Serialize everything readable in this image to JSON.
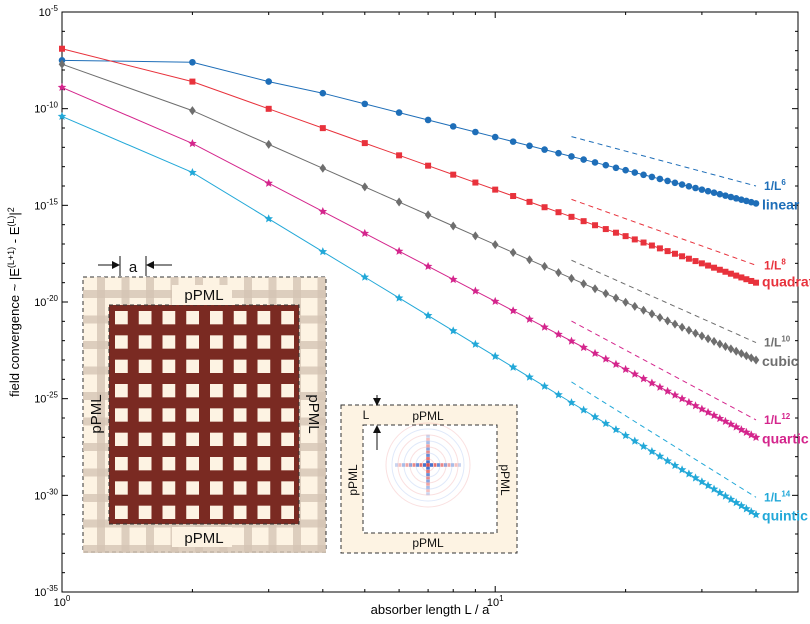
{
  "chart_data": {
    "type": "line",
    "xscale": "log",
    "yscale": "log",
    "xlim": [
      1,
      50
    ],
    "ylim": [
      1e-35,
      1e-05
    ],
    "xlabel": "absorber length L / a",
    "ylabel_parts": [
      "field convergence ~ |E",
      "(L+1)",
      " - E",
      "(L)",
      "|",
      "2"
    ],
    "x_ticks": [
      {
        "value": 1,
        "base": "10",
        "exp": "0"
      },
      {
        "value": 10,
        "base": "10",
        "exp": "1"
      }
    ],
    "y_ticks": [
      {
        "value": -5,
        "base": "10",
        "exp": "-5"
      },
      {
        "value": -10,
        "base": "10",
        "exp": "-10"
      },
      {
        "value": -15,
        "base": "10",
        "exp": "-15"
      },
      {
        "value": -20,
        "base": "10",
        "exp": "-20"
      },
      {
        "value": -25,
        "base": "10",
        "exp": "-25"
      },
      {
        "value": -30,
        "base": "10",
        "exp": "-30"
      },
      {
        "value": -35,
        "base": "10",
        "exp": "-35"
      }
    ],
    "series": [
      {
        "name": "linear",
        "color": "#1e6eb8",
        "marker": "circle",
        "points": [
          [
            1,
            -7.5
          ],
          [
            2,
            -7.6
          ],
          [
            3,
            -8.6
          ],
          [
            4,
            -9.2
          ],
          [
            40,
            -14.9
          ]
        ],
        "ref_label_base": "1/L",
        "ref_label_exp": "6",
        "ref_slope": -6
      },
      {
        "name": "quadratic",
        "color": "#e8323c",
        "marker": "square",
        "points": [
          [
            1,
            -6.9
          ],
          [
            2,
            -8.6
          ],
          [
            40,
            -19.0
          ]
        ],
        "ref_label_base": "1/L",
        "ref_label_exp": "8",
        "ref_slope": -8
      },
      {
        "name": "cubic",
        "color": "#6e6e6e",
        "marker": "diamond",
        "points": [
          [
            1,
            -7.7
          ],
          [
            2,
            -10.1
          ],
          [
            40,
            -23.0
          ]
        ],
        "ref_label_base": "1/L",
        "ref_label_exp": "10",
        "ref_slope": -10
      },
      {
        "name": "quartic",
        "color": "#d4258c",
        "marker": "star",
        "points": [
          [
            1,
            -8.9
          ],
          [
            2,
            -11.8
          ],
          [
            40,
            -27.0
          ]
        ],
        "ref_label_base": "1/L",
        "ref_label_exp": "12",
        "ref_slope": -12
      },
      {
        "name": "quintic",
        "color": "#22a8d8",
        "marker": "star",
        "points": [
          [
            1,
            -10.4
          ],
          [
            2,
            -13.3
          ],
          [
            40,
            -31.0
          ]
        ],
        "ref_label_base": "1/L",
        "ref_label_exp": "14",
        "ref_slope": -14
      }
    ],
    "n_max": 40,
    "grid": false,
    "legend": "inline labels at right"
  },
  "insets": {
    "left": {
      "top": "pPML",
      "bottom": "pPML",
      "left": "pPML",
      "right": "pPML",
      "dim": "a"
    },
    "right": {
      "top": "pPML",
      "bottom": "pPML",
      "left": "pPML",
      "right": "pPML",
      "dim": "L"
    }
  }
}
